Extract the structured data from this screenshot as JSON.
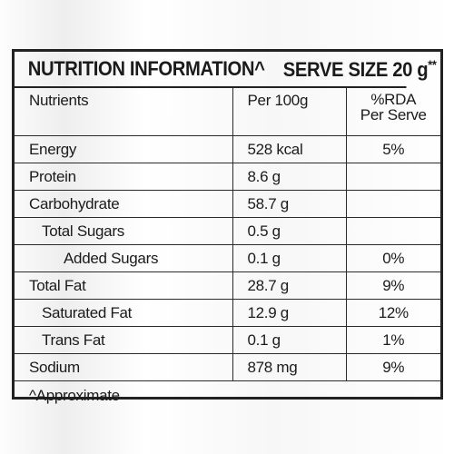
{
  "header": {
    "title": "NUTRITION INFORMATION^",
    "serve_size": "SERVE SIZE 20 g",
    "serve_mark": "**"
  },
  "columns": {
    "nutrients": "Nutrients",
    "per100g": "Per 100g",
    "rda_line1": "%RDA",
    "rda_line2": "Per Serve"
  },
  "rows": [
    {
      "name": "Energy",
      "per100g": "528 kcal",
      "rda": "5%"
    },
    {
      "name": "Protein",
      "per100g": "8.6 g",
      "rda": ""
    },
    {
      "name": "Carbohydrate",
      "per100g": "58.7 g",
      "rda": ""
    },
    {
      "name": "Total Sugars",
      "per100g": "0.5 g",
      "rda": ""
    },
    {
      "name": "Added Sugars",
      "per100g": "0.1 g",
      "rda": "0%"
    },
    {
      "name": "Total Fat",
      "per100g": "28.7 g",
      "rda": "9%"
    },
    {
      "name": "Saturated Fat",
      "per100g": "12.9 g",
      "rda": "12%"
    },
    {
      "name": "Trans Fat",
      "per100g": "0.1 g",
      "rda": "1%"
    },
    {
      "name": "Sodium",
      "per100g": "878 mg",
      "rda": "9%"
    }
  ],
  "footer": {
    "note": "^Approximate"
  }
}
